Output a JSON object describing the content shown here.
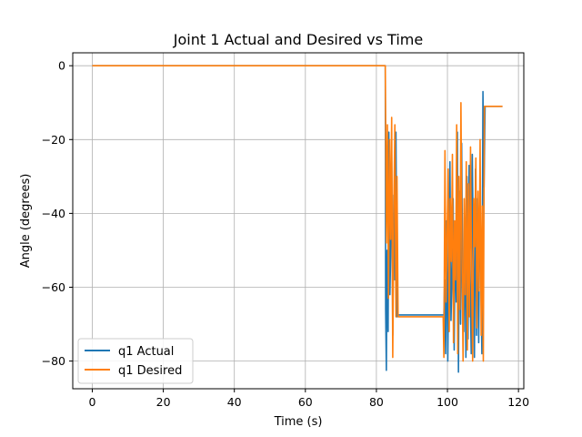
{
  "chart_data": {
    "type": "line",
    "title": "Joint 1 Actual and Desired vs Time",
    "xlabel": "Time (s)",
    "ylabel": "Angle (degrees)",
    "xlim": [
      -5.5,
      121.5
    ],
    "ylim": [
      -87.5,
      3.5
    ],
    "xticks": [
      0,
      20,
      40,
      60,
      80,
      100,
      120
    ],
    "yticks": [
      0,
      -20,
      -40,
      -60,
      -80
    ],
    "grid": true,
    "legend": "lower-left",
    "series": [
      {
        "name": "q1 Actual",
        "color": "#1f77b4",
        "x": [
          0,
          82.5,
          82.6,
          82.8,
          83.0,
          83.3,
          83.5,
          83.8,
          84.0,
          84.3,
          84.6,
          84.9,
          85.2,
          85.5,
          85.8,
          86.0,
          86.3,
          86.6,
          87.0,
          88.5,
          90.0,
          95.0,
          99.0,
          99.2,
          99.5,
          99.8,
          100.1,
          100.4,
          100.7,
          101.0,
          101.3,
          101.6,
          101.9,
          102.2,
          102.5,
          102.8,
          103.1,
          103.4,
          103.7,
          104.0,
          104.3,
          104.6,
          104.9,
          105.2,
          105.5,
          105.8,
          106.1,
          106.4,
          106.7,
          107.0,
          107.3,
          107.6,
          107.9,
          108.2,
          108.5,
          108.8,
          109.1,
          109.4,
          109.7,
          110.0,
          110.3,
          110.6,
          110.9,
          111.5,
          112.5,
          113.5,
          114.5,
          115.5
        ],
        "y": [
          0,
          0,
          -66,
          -82.5,
          -50,
          -72,
          -18,
          -62,
          -52,
          -24,
          -73,
          -35,
          -58,
          -18,
          -68,
          -67.5,
          -67.5,
          -67.5,
          -67.5,
          -67.5,
          -67.5,
          -67.5,
          -67.5,
          -58,
          -78,
          -42,
          -80,
          -48,
          -26,
          -69,
          -56,
          -36,
          -77,
          -44,
          -64,
          -18,
          -83,
          -34,
          -70,
          -21,
          -60,
          -72,
          -44,
          -79,
          -30,
          -74,
          -27,
          -61,
          -78,
          -24,
          -52,
          -79,
          -28,
          -73,
          -36,
          -75,
          -40,
          -55,
          -78,
          -7,
          -33,
          -11,
          -11,
          -11,
          -11,
          -11,
          -11,
          -11
        ]
      },
      {
        "name": "q1 Desired",
        "color": "#ff7f0e",
        "x": [
          0,
          82.5,
          82.8,
          83.1,
          83.4,
          83.7,
          84.0,
          84.3,
          84.6,
          84.9,
          85.2,
          85.5,
          85.8,
          86.1,
          86.4,
          86.7,
          87.0,
          88.0,
          90.0,
          95.0,
          98.8,
          99.0,
          99.3,
          99.6,
          99.9,
          100.2,
          100.5,
          100.8,
          101.1,
          101.4,
          101.7,
          102.0,
          102.3,
          102.6,
          102.9,
          103.2,
          103.5,
          103.8,
          104.1,
          104.4,
          104.7,
          105.0,
          105.3,
          105.6,
          105.9,
          106.2,
          106.5,
          106.8,
          107.1,
          107.4,
          107.7,
          108.0,
          108.3,
          108.6,
          108.9,
          109.2,
          109.5,
          109.8,
          110.1,
          110.4,
          110.7,
          111.0,
          112.0,
          113.0,
          114.0,
          115.5
        ],
        "y": [
          0,
          0,
          -48,
          -16,
          -63,
          -20,
          -47,
          -14,
          -79,
          -38,
          -16,
          -68,
          -30,
          -68,
          -68,
          -68,
          -68,
          -68,
          -68,
          -68,
          -68,
          -79,
          -23,
          -64,
          -46,
          -28,
          -72,
          -36,
          -53,
          -24,
          -75,
          -42,
          -58,
          -16,
          -78,
          -30,
          -66,
          -10,
          -52,
          -80,
          -36,
          -62,
          -26,
          -77,
          -32,
          -68,
          -22,
          -57,
          -80,
          -36,
          -49,
          -25,
          -71,
          -34,
          -61,
          -20,
          -73,
          -38,
          -80,
          -11,
          -11,
          -11,
          -11,
          -11,
          -11,
          -11
        ]
      }
    ]
  }
}
